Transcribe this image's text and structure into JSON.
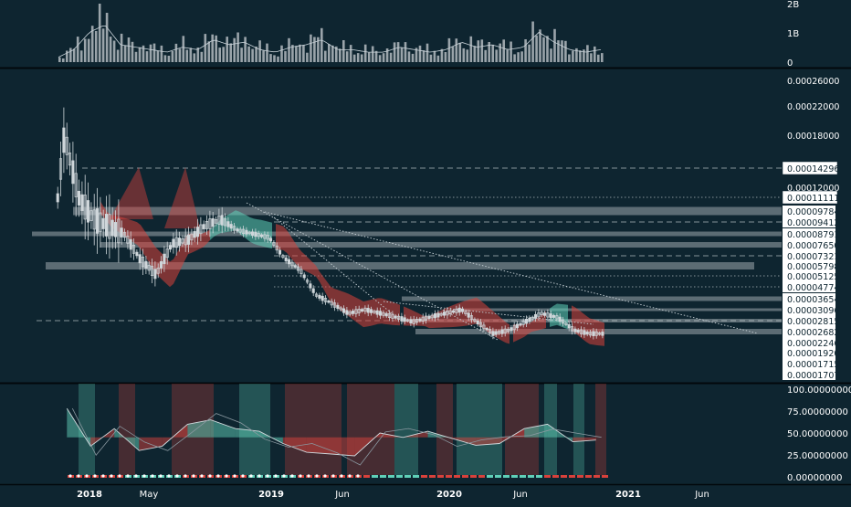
{
  "colors": {
    "background": "#0e2530",
    "pane_border": "#02080b",
    "grid": "#1c3945",
    "candle": "#cfd6da",
    "cloud_bull": "#5fd0b8",
    "cloud_bear": "#d8413b",
    "zone": "#c8cfd3",
    "volume_bar": "#9aa4aa",
    "label_bg": "#ffffff",
    "label_text": "#0e2530"
  },
  "volume_axis": {
    "labels": [
      "2B",
      "1B",
      "0"
    ],
    "values": [
      2,
      1,
      0
    ]
  },
  "price_axis": {
    "labels": [
      "0.00026000",
      "0.00022000",
      "0.00018000",
      "0.00012000",
      "0.00009784",
      "0.00009412",
      "0.00008791",
      "0.00007650",
      "0.00007321",
      "0.00005798",
      "0.00005125",
      "0.00004774",
      "0.00003654",
      "0.00003096",
      "0.00002815",
      "0.00002682",
      "0.00002246",
      "0.00001920",
      "0.00001715",
      "0.00001707"
    ],
    "highlighted": [
      "0.00014296",
      "0.00011111"
    ]
  },
  "oscillator_axis": {
    "labels": [
      "100.00000000",
      "75.00000000",
      "50.00000000",
      "25.00000000",
      "0.00000000"
    ],
    "values": [
      100,
      75,
      50,
      25,
      0
    ]
  },
  "time_axis": {
    "labels": [
      "2018",
      "May",
      "2019",
      "Jun",
      "2020",
      "Jun",
      "2021",
      "Jun"
    ]
  },
  "chart_data": {
    "type": "candlestick",
    "x_range": [
      "2017-11",
      "2021-08"
    ],
    "price_series": [
      {
        "t": "2017-11-20",
        "c": 2.8e-05
      },
      {
        "t": "2017-12-10",
        "c": 5e-05
      },
      {
        "t": "2018-01-08",
        "c": 0.00018
      },
      {
        "t": "2018-02-05",
        "c": 0.00011
      },
      {
        "t": "2018-03-05",
        "c": 9.5e-05
      },
      {
        "t": "2018-04-02",
        "c": 9.2e-05
      },
      {
        "t": "2018-05-01",
        "c": 8.8e-05
      },
      {
        "t": "2018-06-01",
        "c": 6.8e-05
      },
      {
        "t": "2018-07-01",
        "c": 5.2e-05
      },
      {
        "t": "2018-08-01",
        "c": 7.8e-05
      },
      {
        "t": "2018-09-01",
        "c": 8.2e-05
      },
      {
        "t": "2018-10-01",
        "c": 9.2e-05
      },
      {
        "t": "2018-11-01",
        "c": 9.5e-05
      },
      {
        "t": "2018-12-01",
        "c": 9e-05
      },
      {
        "t": "2019-01-01",
        "c": 8.8e-05
      },
      {
        "t": "2019-02-01",
        "c": 8.4e-05
      },
      {
        "t": "2019-03-01",
        "c": 7e-05
      },
      {
        "t": "2019-04-01",
        "c": 5.5e-05
      },
      {
        "t": "2019-05-01",
        "c": 4e-05
      },
      {
        "t": "2019-06-01",
        "c": 3.4e-05
      },
      {
        "t": "2019-07-01",
        "c": 3e-05
      },
      {
        "t": "2019-08-01",
        "c": 3.1e-05
      },
      {
        "t": "2019-09-01",
        "c": 3e-05
      },
      {
        "t": "2019-10-01",
        "c": 2.9e-05
      },
      {
        "t": "2019-11-01",
        "c": 2.8e-05
      },
      {
        "t": "2019-12-01",
        "c": 2.9e-05
      },
      {
        "t": "2020-01-01",
        "c": 3e-05
      },
      {
        "t": "2020-02-01",
        "c": 3.1e-05
      },
      {
        "t": "2020-03-01",
        "c": 2.8e-05
      },
      {
        "t": "2020-04-01",
        "c": 2.6e-05
      },
      {
        "t": "2020-05-01",
        "c": 2.7e-05
      },
      {
        "t": "2020-06-01",
        "c": 2.8e-05
      },
      {
        "t": "2020-07-01",
        "c": 3e-05
      },
      {
        "t": "2020-08-01",
        "c": 2.9e-05
      },
      {
        "t": "2020-09-01",
        "c": 2.7e-05
      },
      {
        "t": "2020-10-01",
        "c": 2.6e-05
      }
    ],
    "volume_series": [
      0.2,
      0.5,
      1.2,
      1.5,
      0.7,
      0.6,
      0.5,
      0.4,
      0.6,
      0.5,
      0.9,
      0.7,
      0.8,
      0.5,
      0.4,
      0.6,
      0.7,
      0.9,
      0.5,
      0.5,
      0.4,
      0.4,
      0.6,
      0.5,
      0.4,
      0.5,
      0.8,
      0.6,
      0.7,
      0.5,
      0.6,
      1.2,
      0.8,
      0.5,
      0.4,
      0.5
    ],
    "oscillator_series": [
      {
        "t": "2018-01-15",
        "v": 78
      },
      {
        "t": "2018-03-01",
        "v": 35
      },
      {
        "t": "2018-04-15",
        "v": 55
      },
      {
        "t": "2018-06-01",
        "v": 30
      },
      {
        "t": "2018-07-15",
        "v": 35
      },
      {
        "t": "2018-09-01",
        "v": 60
      },
      {
        "t": "2018-10-15",
        "v": 65
      },
      {
        "t": "2018-12-01",
        "v": 55
      },
      {
        "t": "2019-01-15",
        "v": 52
      },
      {
        "t": "2019-03-01",
        "v": 38
      },
      {
        "t": "2019-04-15",
        "v": 28
      },
      {
        "t": "2019-06-01",
        "v": 26
      },
      {
        "t": "2019-07-15",
        "v": 24
      },
      {
        "t": "2019-09-01",
        "v": 50
      },
      {
        "t": "2019-10-15",
        "v": 45
      },
      {
        "t": "2019-12-01",
        "v": 52
      },
      {
        "t": "2020-01-15",
        "v": 44
      },
      {
        "t": "2020-03-01",
        "v": 36
      },
      {
        "t": "2020-04-15",
        "v": 38
      },
      {
        "t": "2020-06-01",
        "v": 55
      },
      {
        "t": "2020-07-15",
        "v": 60
      },
      {
        "t": "2020-09-01",
        "v": 40
      },
      {
        "t": "2020-10-15",
        "v": 42
      }
    ]
  }
}
